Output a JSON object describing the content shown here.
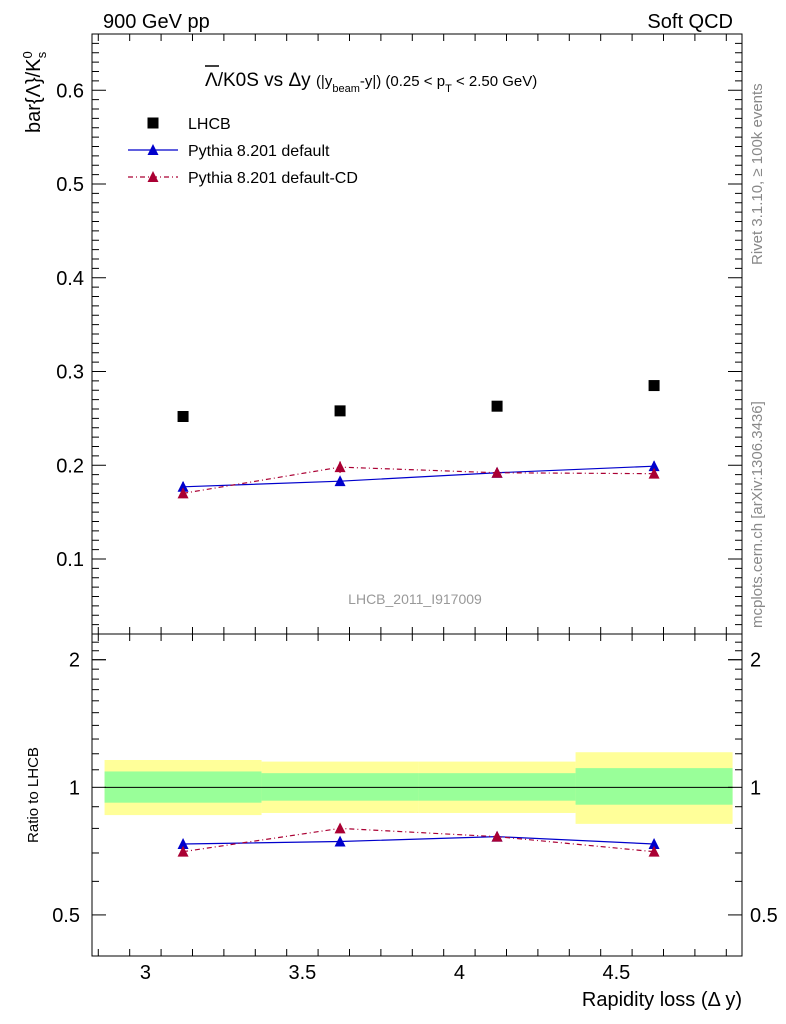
{
  "header": {
    "left": "900 GeV pp",
    "right": "Soft QCD"
  },
  "side_labels": {
    "rivet": "Rivet 3.1.10, ≥ 100k events",
    "mcplots": "mcplots.cern.ch [arXiv:1306.3436]"
  },
  "watermark": "LHCB_2011_I917009",
  "legend": [
    {
      "label": "LHCB",
      "marker": "square",
      "color": "#000000"
    },
    {
      "label": "Pythia 8.201 default",
      "marker": "triangle",
      "color": "#0000cc",
      "line": "solid"
    },
    {
      "label": "Pythia 8.201 default-CD",
      "marker": "triangle",
      "color": "#aa0033",
      "line": "dashdot"
    }
  ],
  "chart_data": [
    {
      "type": "scatter",
      "title": "Λ̅/K0S vs Δy (|y_beam-y|) (0.25 < p_T < 2.50 GeV)",
      "ylabel": "bar{Λ}/K^0_s",
      "xlim": [
        2.83,
        4.9
      ],
      "ylim": [
        0.02,
        0.66
      ],
      "yticks": [
        0.1,
        0.2,
        0.3,
        0.4,
        0.5,
        0.6
      ],
      "ytick_labels": [
        "0.1",
        "0.2",
        "0.3",
        "0.4",
        "0.5",
        "0.6"
      ],
      "series": [
        {
          "name": "LHCB",
          "x": [
            3.12,
            3.62,
            4.12,
            4.62
          ],
          "y": [
            0.252,
            0.258,
            0.263,
            0.285
          ],
          "color": "#000000"
        },
        {
          "name": "Pythia 8.201 default",
          "x": [
            3.12,
            3.62,
            4.12,
            4.62
          ],
          "y": [
            0.177,
            0.183,
            0.192,
            0.199
          ],
          "err": [
            0.005,
            0.004,
            0.004,
            0.005
          ],
          "color": "#0000cc"
        },
        {
          "name": "Pythia 8.201 default-CD",
          "x": [
            3.12,
            3.62,
            4.12,
            4.62
          ],
          "y": [
            0.17,
            0.198,
            0.192,
            0.191
          ],
          "err": [
            0.005,
            0.006,
            0.005,
            0.005
          ],
          "color": "#aa0033"
        }
      ]
    },
    {
      "type": "line",
      "ylabel": "Ratio to LHCB",
      "xlabel": "Rapidity loss (Δ y)",
      "xlim": [
        2.83,
        4.9
      ],
      "ylim": [
        0.4,
        2.3
      ],
      "yticks": [
        0.5,
        1,
        2
      ],
      "ytick_labels": [
        "0.5",
        "1",
        "2"
      ],
      "xticks": [
        3,
        3.5,
        4,
        4.5
      ],
      "xtick_labels": [
        "3",
        "3.5",
        "4",
        "4.5"
      ],
      "bands": [
        {
          "x0": 2.87,
          "x1": 3.37,
          "inner": [
            0.92,
            1.09
          ],
          "outer": [
            0.86,
            1.16
          ]
        },
        {
          "x0": 3.37,
          "x1": 3.87,
          "inner": [
            0.93,
            1.08
          ],
          "outer": [
            0.87,
            1.15
          ]
        },
        {
          "x0": 3.87,
          "x1": 4.37,
          "inner": [
            0.93,
            1.08
          ],
          "outer": [
            0.87,
            1.15
          ]
        },
        {
          "x0": 4.37,
          "x1": 4.87,
          "inner": [
            0.91,
            1.11
          ],
          "outer": [
            0.82,
            1.21
          ]
        }
      ],
      "series": [
        {
          "name": "Pythia 8.201 default",
          "x": [
            3.12,
            3.62,
            4.12,
            4.62
          ],
          "y": [
            0.735,
            0.745,
            0.765,
            0.735
          ],
          "err": [
            0.015,
            0.012,
            0.012,
            0.012
          ],
          "color": "#0000cc"
        },
        {
          "name": "Pythia 8.201 default-CD",
          "x": [
            3.12,
            3.62,
            4.12,
            4.62
          ],
          "y": [
            0.705,
            0.8,
            0.765,
            0.705
          ],
          "err": [
            0.015,
            0.015,
            0.012,
            0.012
          ],
          "color": "#aa0033"
        }
      ]
    }
  ]
}
